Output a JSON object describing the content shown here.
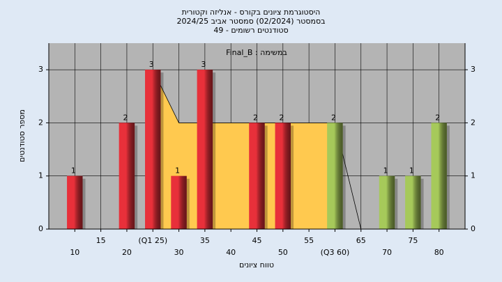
{
  "chart_data": {
    "type": "bar",
    "title": [
      "היסטוגרמת ציונים בקורס - אנליזה וקטורית",
      "בסמסטר  (02/2024)  סמסטר אביב 2024/25",
      "סטודנטים רשומים - 49"
    ],
    "annotation": "Final_B : במשימה",
    "y_label": "מספר סטודנטים",
    "x_label": "טווח ציונים",
    "x": [
      10,
      15,
      20,
      25,
      30,
      35,
      40,
      45,
      50,
      55,
      60,
      65,
      70,
      75,
      80
    ],
    "values": [
      1,
      0,
      2,
      3,
      1,
      3,
      0,
      2,
      2,
      0,
      2,
      0,
      1,
      1,
      2
    ],
    "colors": [
      "#e8303a",
      "#e8303a",
      "#e8303a",
      "#e8303a",
      "#e8303a",
      "#e8303a",
      "#e8303a",
      "#e8303a",
      "#e8303a",
      "#e8303a",
      "#a6c95a",
      "#a6c95a",
      "#a6c95a",
      "#a6c95a",
      "#a6c95a"
    ],
    "band": {
      "color": "#ffc94f",
      "x": [
        25,
        30,
        60
      ],
      "values": [
        3,
        2,
        2
      ]
    },
    "trend": {
      "color": "#000000",
      "x": [
        25,
        30,
        60,
        65
      ],
      "values": [
        3,
        2,
        2,
        0
      ]
    },
    "xlim": [
      5,
      85
    ],
    "xticks": [
      10,
      15,
      20,
      {
        "value": 25,
        "label": "(Q1 25)"
      },
      30,
      35,
      40,
      45,
      50,
      55,
      {
        "value": 60,
        "label": "(Q3 60)"
      },
      65,
      70,
      75,
      80
    ],
    "ylim": [
      0,
      3.5
    ],
    "yticks": [
      0,
      1,
      2,
      3
    ],
    "grid": true,
    "right_axis": true,
    "plot_background": "#b4b4b4"
  }
}
